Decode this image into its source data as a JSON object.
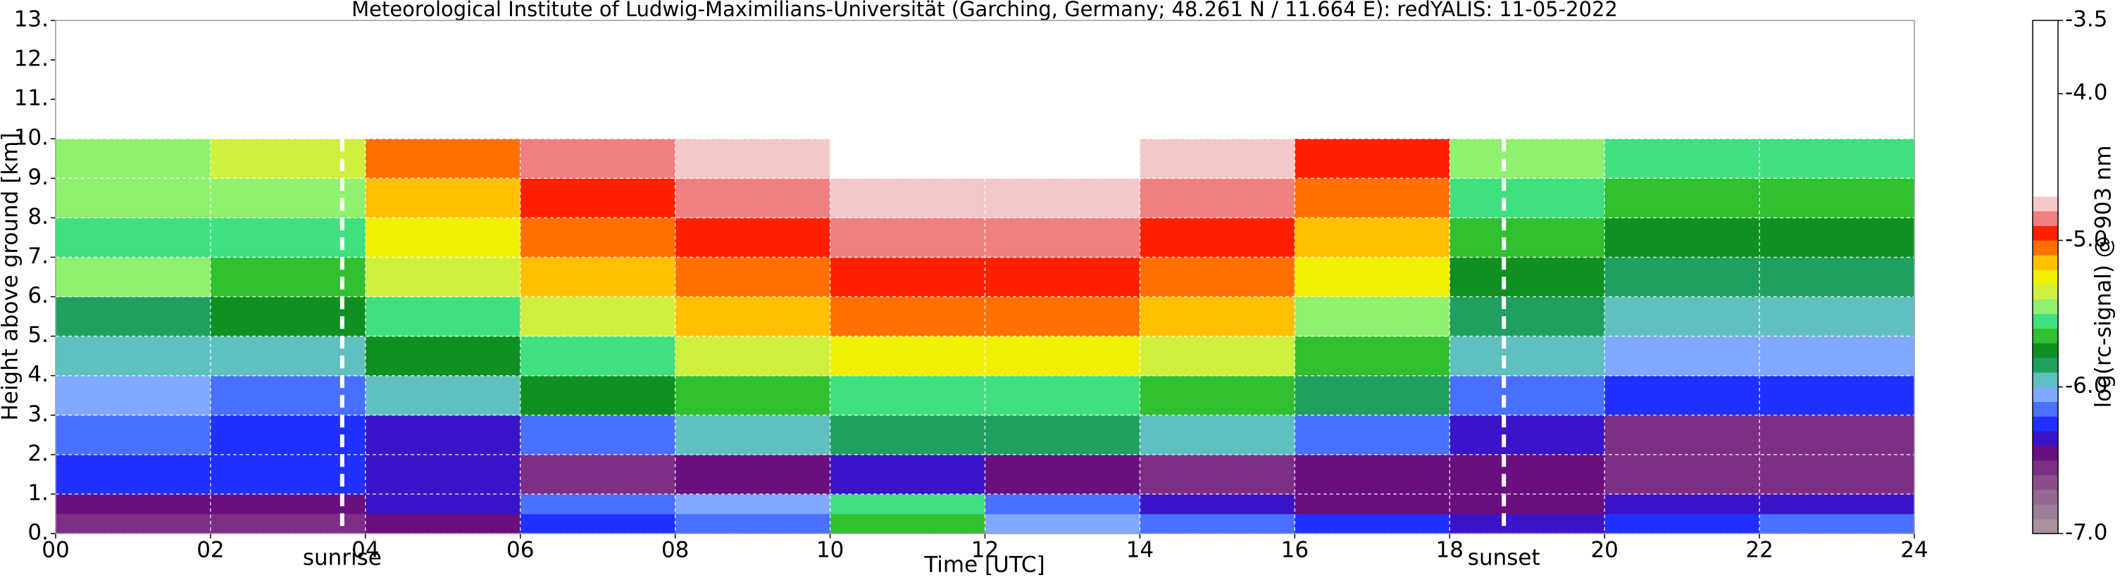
{
  "chart_data": {
    "type": "heatmap",
    "title": "Meteorological Institute of Ludwig-Maximilians-Universität (Garching, Germany; 48.261 N / 11.664 E):    redYALIS: 11-05-2022",
    "x_label": "Time [UTC]",
    "y_label": "Height above ground [km]",
    "xlim": [
      0,
      24
    ],
    "ylim": [
      0,
      13
    ],
    "xticks": [
      {
        "value": 0,
        "label": "00"
      },
      {
        "value": 2,
        "label": "02"
      },
      {
        "value": 4,
        "label": "04"
      },
      {
        "value": 6,
        "label": "06"
      },
      {
        "value": 8,
        "label": "08"
      },
      {
        "value": 10,
        "label": "10"
      },
      {
        "value": 12,
        "label": "12"
      },
      {
        "value": 14,
        "label": "14"
      },
      {
        "value": 16,
        "label": "16"
      },
      {
        "value": 18,
        "label": "18"
      },
      {
        "value": 20,
        "label": "20"
      },
      {
        "value": 22,
        "label": "22"
      },
      {
        "value": 24,
        "label": "24"
      }
    ],
    "yticks": [
      {
        "value": 0,
        "label": "0."
      },
      {
        "value": 1,
        "label": "1."
      },
      {
        "value": 2,
        "label": "2."
      },
      {
        "value": 3,
        "label": "3."
      },
      {
        "value": 4,
        "label": "4."
      },
      {
        "value": 5,
        "label": "5."
      },
      {
        "value": 6,
        "label": "6."
      },
      {
        "value": 7,
        "label": "7."
      },
      {
        "value": 8,
        "label": "8."
      },
      {
        "value": 9,
        "label": "9."
      },
      {
        "value": 10,
        "label": "10."
      },
      {
        "value": 11,
        "label": "11."
      },
      {
        "value": 12,
        "label": "12."
      },
      {
        "value": 13,
        "label": "13."
      }
    ],
    "grid": true,
    "x_edges": [
      0,
      2,
      4,
      6,
      8,
      10,
      12,
      14,
      16,
      18,
      20,
      22,
      24
    ],
    "y_edges": [
      0,
      0.5,
      1,
      2,
      3,
      4,
      5,
      6,
      7,
      8,
      9,
      10
    ],
    "z": [
      [
        -6.6,
        -6.6,
        -6.5,
        -6.3,
        -6.2,
        -5.7,
        -6.1,
        -6.2,
        -6.3,
        -6.4,
        -6.3,
        -6.2
      ],
      [
        -6.5,
        -6.5,
        -6.4,
        -6.2,
        -6.1,
        -5.6,
        -6.2,
        -6.4,
        -6.5,
        -6.5,
        -6.4,
        -6.4
      ],
      [
        -6.3,
        -6.3,
        -6.4,
        -6.6,
        -6.5,
        -6.4,
        -6.5,
        -6.6,
        -6.5,
        -6.5,
        -6.6,
        -6.6
      ],
      [
        -6.2,
        -6.3,
        -6.4,
        -6.2,
        -6.0,
        -5.9,
        -5.9,
        -6.0,
        -6.2,
        -6.4,
        -6.6,
        -6.6
      ],
      [
        -6.1,
        -6.2,
        -6.0,
        -5.8,
        -5.7,
        -5.6,
        -5.6,
        -5.7,
        -5.9,
        -6.2,
        -6.3,
        -6.3
      ],
      [
        -6.0,
        -6.0,
        -5.8,
        -5.6,
        -5.4,
        -5.3,
        -5.3,
        -5.4,
        -5.7,
        -6.0,
        -6.1,
        -6.1
      ],
      [
        -5.9,
        -5.8,
        -5.6,
        -5.4,
        -5.2,
        -5.1,
        -5.1,
        -5.2,
        -5.5,
        -5.9,
        -6.0,
        -6.0
      ],
      [
        -5.5,
        -5.7,
        -5.4,
        -5.2,
        -5.1,
        -5.0,
        -5.0,
        -5.1,
        -5.3,
        -5.8,
        -5.9,
        -5.9
      ],
      [
        -5.6,
        -5.6,
        -5.3,
        -5.1,
        -5.0,
        -4.9,
        -4.9,
        -5.0,
        -5.2,
        -5.7,
        -5.8,
        -5.8
      ],
      [
        -5.5,
        -5.5,
        -5.2,
        -5.0,
        -4.9,
        -4.8,
        -4.8,
        -4.9,
        -5.1,
        -5.6,
        -5.7,
        -5.7
      ],
      [
        -5.5,
        -5.4,
        -5.1,
        -4.9,
        -4.8,
        -4.7,
        -4.7,
        -4.8,
        -5.0,
        -5.5,
        -5.6,
        -5.6
      ]
    ],
    "annotations": [
      {
        "x": 3.7,
        "text": "sunrise"
      },
      {
        "x": 18.7,
        "text": "sunset"
      }
    ],
    "colorbar": {
      "label": "log(rc-signal) @ 903 nm",
      "lim": [
        -7,
        -3.5
      ],
      "ticks": [
        {
          "value": -7,
          "label": "-7.0"
        },
        {
          "value": -6,
          "label": "-6.0"
        },
        {
          "value": -5,
          "label": "-5.0"
        },
        {
          "value": -4,
          "label": "-4.0"
        },
        -3.5
      ],
      "levels": [
        -7,
        -6.9,
        -6.8,
        -6.7,
        -6.6,
        -6.5,
        -6.4,
        -6.3,
        -6.2,
        -6.1,
        -6,
        -5.9,
        -5.8,
        -5.7,
        -5.6,
        -5.5,
        -5.4,
        -5.3,
        -5.2,
        -5.1,
        -5,
        -4.9,
        -4.8,
        -4.7,
        -3.5
      ],
      "colors": [
        "#a8909f",
        "#9e7e98",
        "#956a92",
        "#8a4f8a",
        "#7d2f85",
        "#6a0f80",
        "#3a14c8",
        "#2030ff",
        "#4a70ff",
        "#80a8ff",
        "#60c0c0",
        "#20a060",
        "#109020",
        "#30c030",
        "#40e080",
        "#90f070",
        "#d0f040",
        "#f0f000",
        "#ffc000",
        "#ff7000",
        "#ff2000",
        "#f08080",
        "#f4c8c8",
        "#ffffff"
      ]
    }
  }
}
